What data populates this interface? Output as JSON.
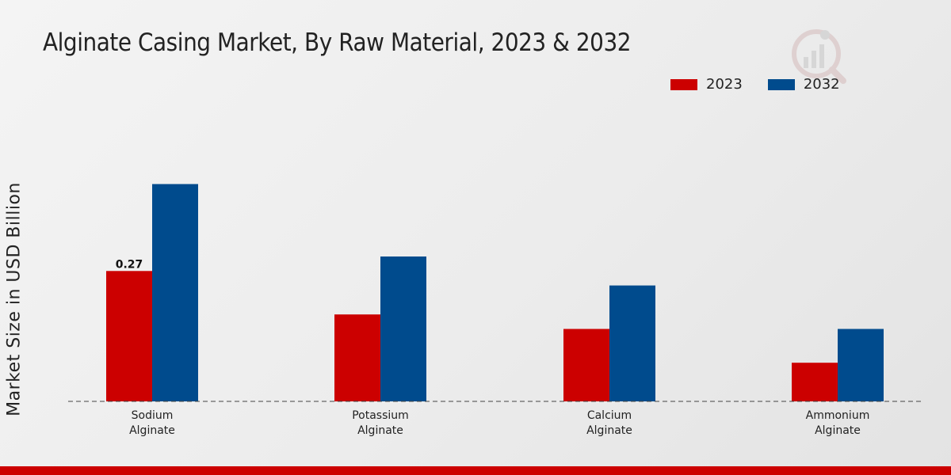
{
  "title": "Alginate Casing Market, By Raw Material, 2023 & 2032",
  "logo": "market-research-logo",
  "chart_data": {
    "type": "bar",
    "title": "Alginate Casing Market, By Raw Material, 2023 & 2032",
    "xlabel": "",
    "ylabel": "Market Size in USD Billion",
    "categories": [
      [
        "Sodium",
        "Alginate"
      ],
      [
        "Potassium",
        "Alginate"
      ],
      [
        "Calcium",
        "Alginate"
      ],
      [
        "Ammonium",
        "Alginate"
      ]
    ],
    "series": [
      {
        "name": "2023",
        "color": "#cc0000",
        "values": [
          0.27,
          0.18,
          0.15,
          0.08
        ]
      },
      {
        "name": "2032",
        "color": "#004b8d",
        "values": [
          0.45,
          0.3,
          0.24,
          0.15
        ]
      }
    ],
    "data_labels": [
      {
        "series": 0,
        "index": 0,
        "text": "0.27"
      }
    ],
    "ylim": [
      0,
      0.7
    ],
    "grid": false,
    "legend_position": "top-right"
  }
}
